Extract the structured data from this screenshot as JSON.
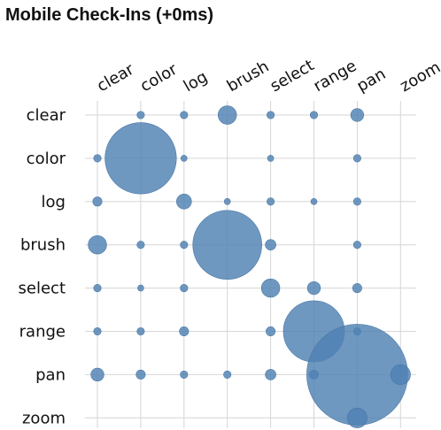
{
  "chart_data": {
    "type": "scatter",
    "title": "Mobile Check-Ins (+0ms)",
    "x_categories": [
      "clear",
      "color",
      "log",
      "brush",
      "select",
      "range",
      "pan",
      "zoom"
    ],
    "y_categories": [
      "clear",
      "color",
      "log",
      "brush",
      "select",
      "range",
      "pan",
      "zoom"
    ],
    "grid": true,
    "marker_color": "#4f81b3",
    "points": [
      {
        "x": "color",
        "y": "clear",
        "value": 1
      },
      {
        "x": "log",
        "y": "clear",
        "value": 1
      },
      {
        "x": "brush",
        "y": "clear",
        "value": 6
      },
      {
        "x": "select",
        "y": "clear",
        "value": 1
      },
      {
        "x": "range",
        "y": "clear",
        "value": 1
      },
      {
        "x": "pan",
        "y": "clear",
        "value": 3
      },
      {
        "x": "clear",
        "y": "color",
        "value": 1
      },
      {
        "x": "color",
        "y": "color",
        "value": 90
      },
      {
        "x": "log",
        "y": "color",
        "value": 0.5
      },
      {
        "x": "select",
        "y": "color",
        "value": 0.5
      },
      {
        "x": "pan",
        "y": "color",
        "value": 1
      },
      {
        "x": "clear",
        "y": "log",
        "value": 1.5
      },
      {
        "x": "log",
        "y": "log",
        "value": 4
      },
      {
        "x": "brush",
        "y": "log",
        "value": 0.5
      },
      {
        "x": "select",
        "y": "log",
        "value": 1
      },
      {
        "x": "range",
        "y": "log",
        "value": 0.5
      },
      {
        "x": "pan",
        "y": "log",
        "value": 1
      },
      {
        "x": "clear",
        "y": "brush",
        "value": 6
      },
      {
        "x": "color",
        "y": "brush",
        "value": 1
      },
      {
        "x": "log",
        "y": "brush",
        "value": 1
      },
      {
        "x": "brush",
        "y": "brush",
        "value": 84
      },
      {
        "x": "select",
        "y": "brush",
        "value": 2
      },
      {
        "x": "pan",
        "y": "brush",
        "value": 1
      },
      {
        "x": "clear",
        "y": "select",
        "value": 1
      },
      {
        "x": "color",
        "y": "select",
        "value": 0.5
      },
      {
        "x": "log",
        "y": "select",
        "value": 1
      },
      {
        "x": "select",
        "y": "select",
        "value": 6
      },
      {
        "x": "range",
        "y": "select",
        "value": 3
      },
      {
        "x": "pan",
        "y": "select",
        "value": 1.5
      },
      {
        "x": "clear",
        "y": "range",
        "value": 1
      },
      {
        "x": "color",
        "y": "range",
        "value": 1
      },
      {
        "x": "log",
        "y": "range",
        "value": 1.5
      },
      {
        "x": "select",
        "y": "range",
        "value": 1.5
      },
      {
        "x": "range",
        "y": "range",
        "value": 66
      },
      {
        "x": "pan",
        "y": "range",
        "value": 1
      },
      {
        "x": "clear",
        "y": "pan",
        "value": 3
      },
      {
        "x": "color",
        "y": "pan",
        "value": 1.5
      },
      {
        "x": "log",
        "y": "pan",
        "value": 1
      },
      {
        "x": "brush",
        "y": "pan",
        "value": 1
      },
      {
        "x": "select",
        "y": "pan",
        "value": 2
      },
      {
        "x": "range",
        "y": "pan",
        "value": 1.5
      },
      {
        "x": "pan",
        "y": "pan",
        "value": 180
      },
      {
        "x": "zoom",
        "y": "pan",
        "value": 7
      },
      {
        "x": "pan",
        "y": "zoom",
        "value": 7
      }
    ]
  }
}
